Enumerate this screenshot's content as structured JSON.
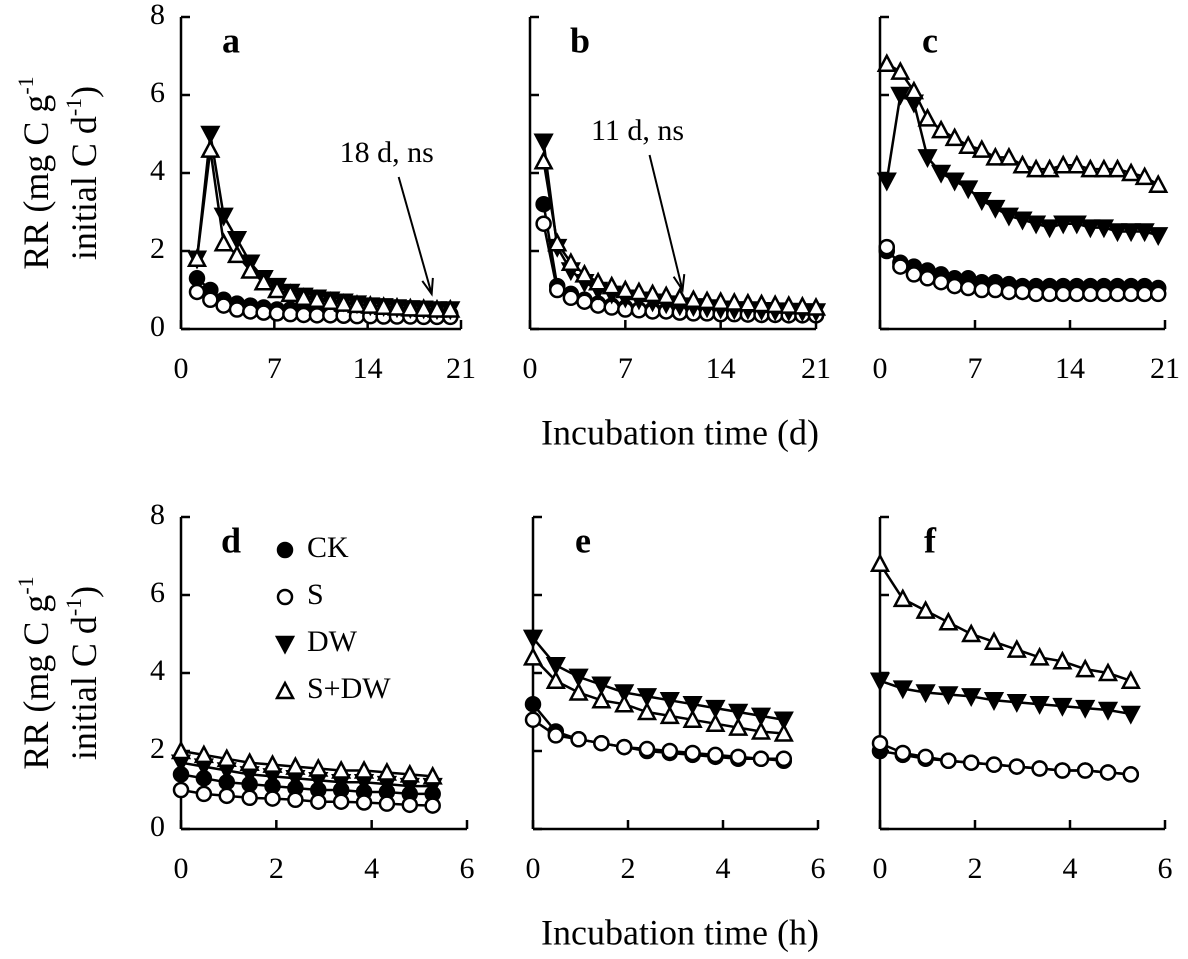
{
  "chart_data": [
    {
      "type": "line",
      "panel": "a",
      "ylabel": {
        "line1": "RR (mg C g",
        "line1_sup": "-1",
        "line2": "initial C d",
        "line2_sup": "-1",
        "line2_end": ")"
      },
      "annotation": {
        "text": "18 d, ns",
        "x": 18.8,
        "y": 0.9
      },
      "xlim": [
        0,
        21
      ],
      "xticks": [
        0,
        7,
        14,
        21
      ],
      "ylim": [
        0,
        8
      ],
      "yticks": [
        0,
        2,
        4,
        6,
        8
      ],
      "show_ytick_labels": true,
      "x": [
        1.2,
        2.2,
        3.2,
        4.2,
        5.2,
        6.2,
        7.2,
        8.2,
        9.2,
        10.2,
        11.2,
        12.2,
        13.2,
        14.2,
        15.2,
        16.2,
        17.2,
        18.2,
        19.2,
        20.2
      ],
      "series": [
        {
          "marker": "circle",
          "fill": "#000000",
          "values": [
            1.3,
            1.0,
            0.75,
            0.65,
            0.6,
            0.55,
            0.5,
            0.5,
            0.48,
            0.45,
            0.45,
            0.42,
            0.42,
            0.4,
            0.4,
            0.4,
            0.38,
            0.38,
            0.38,
            0.38
          ]
        },
        {
          "marker": "circle",
          "fill": "#ffffff",
          "values": [
            0.95,
            0.75,
            0.6,
            0.5,
            0.45,
            0.42,
            0.4,
            0.38,
            0.36,
            0.35,
            0.35,
            0.34,
            0.33,
            0.33,
            0.32,
            0.32,
            0.32,
            0.31,
            0.31,
            0.31
          ]
        },
        {
          "marker": "triangle-down",
          "fill": "#000000",
          "values": [
            1.8,
            5.0,
            2.9,
            2.3,
            1.7,
            1.3,
            1.1,
            0.95,
            0.85,
            0.8,
            0.75,
            0.7,
            0.65,
            0.6,
            0.58,
            0.55,
            0.53,
            0.52,
            0.5,
            0.5
          ]
        },
        {
          "marker": "triangle-up",
          "fill": "#ffffff",
          "values": [
            1.8,
            4.6,
            2.2,
            1.9,
            1.5,
            1.2,
            1.0,
            0.9,
            0.8,
            0.75,
            0.7,
            0.65,
            0.62,
            0.6,
            0.57,
            0.55,
            0.53,
            0.52,
            0.5,
            0.5
          ]
        }
      ]
    },
    {
      "type": "line",
      "panel": "b",
      "xlabel": "Incubation time (d)",
      "annotation": {
        "text": "11 d, ns",
        "x": 11.2,
        "y": 1.0
      },
      "xlim": [
        0,
        21
      ],
      "xticks": [
        0,
        7,
        14,
        21
      ],
      "ylim": [
        0,
        8
      ],
      "yticks": [
        0,
        2,
        4,
        6,
        8
      ],
      "show_ytick_labels": false,
      "x": [
        1,
        2,
        3,
        4,
        5,
        6,
        7,
        8,
        9,
        10,
        11,
        12,
        13,
        14,
        15,
        16,
        17,
        18,
        19,
        20,
        21
      ],
      "series": [
        {
          "marker": "circle",
          "fill": "#000000",
          "values": [
            3.2,
            1.1,
            0.9,
            0.75,
            0.65,
            0.6,
            0.55,
            0.5,
            0.5,
            0.48,
            0.45,
            0.45,
            0.42,
            0.4,
            0.4,
            0.4,
            0.38,
            0.38,
            0.38,
            0.36,
            0.35
          ]
        },
        {
          "marker": "circle",
          "fill": "#ffffff",
          "values": [
            2.7,
            1.0,
            0.8,
            0.7,
            0.6,
            0.55,
            0.5,
            0.48,
            0.45,
            0.45,
            0.42,
            0.4,
            0.4,
            0.38,
            0.38,
            0.37,
            0.36,
            0.36,
            0.35,
            0.35,
            0.35
          ]
        },
        {
          "marker": "triangle-down",
          "fill": "#000000",
          "values": [
            4.8,
            2.1,
            1.5,
            1.2,
            1.0,
            0.9,
            0.8,
            0.75,
            0.7,
            0.65,
            0.6,
            0.58,
            0.55,
            0.52,
            0.5,
            0.5,
            0.48,
            0.47,
            0.46,
            0.45,
            0.45
          ]
        },
        {
          "marker": "triangle-up",
          "fill": "#ffffff",
          "values": [
            4.3,
            2.2,
            1.7,
            1.4,
            1.2,
            1.1,
            1.0,
            0.95,
            0.9,
            0.85,
            0.8,
            0.75,
            0.72,
            0.7,
            0.68,
            0.66,
            0.64,
            0.62,
            0.6,
            0.58,
            0.55
          ]
        }
      ]
    },
    {
      "type": "line",
      "panel": "c",
      "xlim": [
        0,
        21
      ],
      "xticks": [
        0,
        7,
        14,
        21
      ],
      "ylim": [
        0,
        8
      ],
      "yticks": [
        0,
        2,
        4,
        6,
        8
      ],
      "show_ytick_labels": false,
      "x": [
        0.5,
        1.5,
        2.5,
        3.5,
        4.5,
        5.5,
        6.5,
        7.5,
        8.5,
        9.5,
        10.5,
        11.5,
        12.5,
        13.5,
        14.5,
        15.5,
        16.5,
        17.5,
        18.5,
        19.5,
        20.5
      ],
      "series": [
        {
          "marker": "circle",
          "fill": "#000000",
          "values": [
            2.0,
            1.7,
            1.6,
            1.5,
            1.4,
            1.3,
            1.3,
            1.2,
            1.2,
            1.15,
            1.1,
            1.1,
            1.1,
            1.1,
            1.1,
            1.1,
            1.1,
            1.1,
            1.1,
            1.1,
            1.05
          ]
        },
        {
          "marker": "circle",
          "fill": "#ffffff",
          "values": [
            2.1,
            1.6,
            1.4,
            1.3,
            1.2,
            1.1,
            1.05,
            1.0,
            1.0,
            0.95,
            0.95,
            0.9,
            0.9,
            0.9,
            0.9,
            0.9,
            0.9,
            0.9,
            0.9,
            0.9,
            0.9
          ]
        },
        {
          "marker": "triangle-down",
          "fill": "#000000",
          "values": [
            3.8,
            6.0,
            5.8,
            4.4,
            4.0,
            3.8,
            3.6,
            3.3,
            3.1,
            2.9,
            2.8,
            2.7,
            2.6,
            2.7,
            2.7,
            2.6,
            2.6,
            2.5,
            2.5,
            2.5,
            2.4
          ]
        },
        {
          "marker": "triangle-up",
          "fill": "#ffffff",
          "values": [
            6.8,
            6.6,
            6.1,
            5.4,
            5.1,
            4.9,
            4.7,
            4.6,
            4.4,
            4.4,
            4.2,
            4.1,
            4.1,
            4.2,
            4.2,
            4.1,
            4.1,
            4.1,
            4.0,
            3.9,
            3.7
          ]
        }
      ]
    },
    {
      "type": "line",
      "panel": "d",
      "legend": "upper left",
      "ylabel": {
        "line1": "RR (mg C g",
        "line1_sup": "-1",
        "line2": "initial C d",
        "line2_sup": "-1",
        "line2_end": ")"
      },
      "xlim": [
        0,
        6
      ],
      "xticks": [
        0,
        2,
        4,
        6
      ],
      "ylim": [
        0,
        8
      ],
      "yticks": [
        0,
        2,
        4,
        6,
        8
      ],
      "show_ytick_labels": true,
      "x": [
        0,
        0.48,
        0.96,
        1.44,
        1.92,
        2.4,
        2.88,
        3.36,
        3.84,
        4.32,
        4.8,
        5.28
      ],
      "series": [
        {
          "name": "CK",
          "marker": "circle",
          "fill": "#000000",
          "values": [
            1.4,
            1.3,
            1.2,
            1.15,
            1.1,
            1.05,
            1.0,
            1.0,
            0.95,
            0.95,
            0.9,
            0.9
          ]
        },
        {
          "name": "S",
          "marker": "circle",
          "fill": "#ffffff",
          "values": [
            1.0,
            0.9,
            0.85,
            0.8,
            0.78,
            0.75,
            0.7,
            0.7,
            0.68,
            0.65,
            0.62,
            0.6
          ]
        },
        {
          "name": "DW",
          "marker": "triangle-down",
          "fill": "#000000",
          "values": [
            1.7,
            1.6,
            1.5,
            1.4,
            1.35,
            1.3,
            1.25,
            1.2,
            1.2,
            1.15,
            1.1,
            1.1
          ]
        },
        {
          "name": "S+DW",
          "marker": "triangle-up",
          "fill": "#ffffff",
          "values": [
            2.0,
            1.9,
            1.8,
            1.7,
            1.65,
            1.6,
            1.55,
            1.5,
            1.5,
            1.45,
            1.4,
            1.35
          ]
        }
      ]
    },
    {
      "type": "line",
      "panel": "e",
      "xlabel": "Incubation time (h)",
      "xlim": [
        0,
        6
      ],
      "xticks": [
        0,
        2,
        4,
        6
      ],
      "ylim": [
        0,
        8
      ],
      "yticks": [
        0,
        2,
        4,
        6,
        8
      ],
      "show_ytick_labels": false,
      "x": [
        0,
        0.48,
        0.96,
        1.44,
        1.92,
        2.4,
        2.88,
        3.36,
        3.84,
        4.32,
        4.8,
        5.28
      ],
      "series": [
        {
          "marker": "circle",
          "fill": "#000000",
          "values": [
            3.2,
            2.5,
            2.3,
            2.2,
            2.1,
            2.0,
            1.95,
            1.9,
            1.85,
            1.8,
            1.8,
            1.75
          ]
        },
        {
          "marker": "circle",
          "fill": "#ffffff",
          "values": [
            2.8,
            2.4,
            2.3,
            2.2,
            2.1,
            2.05,
            2.0,
            1.95,
            1.9,
            1.85,
            1.8,
            1.8
          ]
        },
        {
          "marker": "triangle-down",
          "fill": "#000000",
          "values": [
            4.9,
            4.2,
            3.9,
            3.7,
            3.5,
            3.4,
            3.3,
            3.2,
            3.1,
            3.0,
            2.9,
            2.8
          ]
        },
        {
          "marker": "triangle-up",
          "fill": "#ffffff",
          "values": [
            4.4,
            3.8,
            3.5,
            3.3,
            3.2,
            3.0,
            2.9,
            2.8,
            2.7,
            2.6,
            2.5,
            2.45
          ]
        }
      ]
    },
    {
      "type": "line",
      "panel": "f",
      "xlim": [
        0,
        6
      ],
      "xticks": [
        0,
        2,
        4,
        6
      ],
      "ylim": [
        0,
        8
      ],
      "yticks": [
        0,
        2,
        4,
        6,
        8
      ],
      "show_ytick_labels": false,
      "x": [
        0,
        0.48,
        0.96,
        1.44,
        1.92,
        2.4,
        2.88,
        3.36,
        3.84,
        4.32,
        4.8,
        5.28
      ],
      "series": [
        {
          "marker": "circle",
          "fill": "#000000",
          "values": [
            2.0,
            1.9,
            1.8,
            1.75,
            1.7,
            1.65,
            1.6,
            1.55,
            1.5,
            1.5,
            1.45,
            1.4
          ]
        },
        {
          "marker": "circle",
          "fill": "#ffffff",
          "values": [
            2.2,
            1.95,
            1.85,
            1.75,
            1.7,
            1.65,
            1.6,
            1.55,
            1.5,
            1.5,
            1.45,
            1.4
          ]
        },
        {
          "marker": "triangle-down",
          "fill": "#000000",
          "values": [
            3.8,
            3.6,
            3.5,
            3.45,
            3.4,
            3.3,
            3.25,
            3.2,
            3.15,
            3.1,
            3.05,
            2.95
          ]
        },
        {
          "marker": "triangle-up",
          "fill": "#ffffff",
          "values": [
            6.8,
            5.9,
            5.6,
            5.3,
            5.0,
            4.8,
            4.6,
            4.4,
            4.3,
            4.1,
            4.0,
            3.8
          ]
        }
      ]
    }
  ]
}
